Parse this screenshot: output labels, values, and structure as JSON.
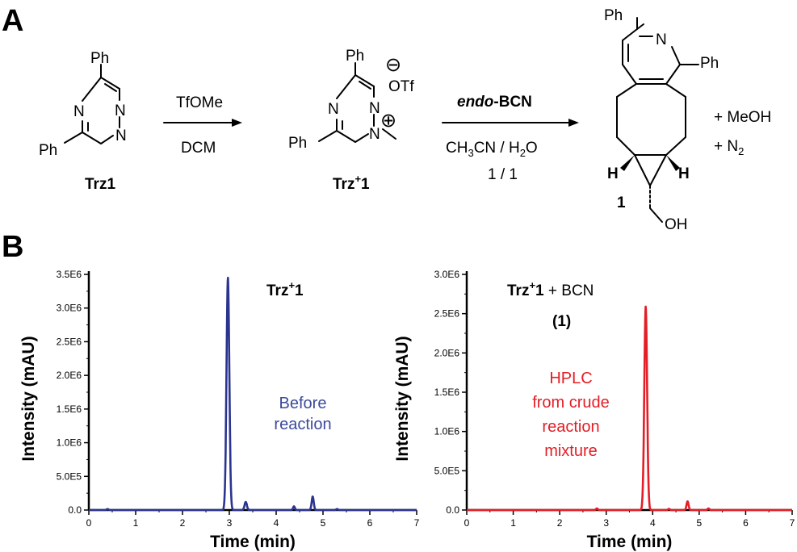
{
  "panel_labels": {
    "a": "A",
    "b": "B"
  },
  "scheme": {
    "trz1": {
      "name": "Trz1",
      "ph_top": "Ph",
      "ph_left": "Ph",
      "n1": "N",
      "n2": "N",
      "n3": "N"
    },
    "step1": {
      "reagent": "TfOMe",
      "solvent": "DCM"
    },
    "trz1_plus": {
      "name_main": "Trz",
      "name_sup": "+",
      "name_num": "1",
      "ph_top": "Ph",
      "ph_left": "Ph",
      "counterion": "OTf",
      "minus": "⊖",
      "plus": "⊕",
      "n1": "N",
      "n2": "N",
      "n3": "N"
    },
    "step2": {
      "reagent_italic": "endo",
      "reagent_rest": "-BCN",
      "solvent_a": "CH",
      "solvent_sub3": "3",
      "solvent_b": "CN / H",
      "solvent_sub2": "2",
      "solvent_c": "O",
      "ratio": "1 / 1"
    },
    "product": {
      "label": "1",
      "ph_top": "Ph",
      "ph_right": "Ph",
      "n": "N",
      "h_left": "H",
      "h_right": "H",
      "oh": "OH"
    },
    "byproducts": {
      "line1": "+ MeOH",
      "line2_a": "+ N",
      "line2_sub": "2"
    }
  },
  "colors": {
    "blue": "#2b3590",
    "red": "#e41e26",
    "annot_blue": "#3c4a9b"
  },
  "chart_data": [
    {
      "type": "line",
      "title_main": "Trz",
      "title_sup": "+",
      "title_num": "1",
      "annotation": [
        "Before",
        "reaction"
      ],
      "xlabel": "Time (min)",
      "ylabel": "Intensity (mAU)",
      "xlim": [
        0,
        7
      ],
      "ylim": [
        0,
        3500000
      ],
      "xticks": [
        "0",
        "1",
        "2",
        "3",
        "4",
        "5",
        "6",
        "7"
      ],
      "yticks": [
        {
          "v": 0,
          "t": "0.0"
        },
        {
          "v": 500000,
          "t": "5.0E5"
        },
        {
          "v": 1000000,
          "t": "1.0E6"
        },
        {
          "v": 1500000,
          "t": "1.5E6"
        },
        {
          "v": 2000000,
          "t": "2.0E6"
        },
        {
          "v": 2500000,
          "t": "2.5E6"
        },
        {
          "v": 3000000,
          "t": "3.0E6"
        },
        {
          "v": 3500000,
          "t": "3.5E6"
        }
      ],
      "color": "#2b3590",
      "series": [
        {
          "peaks": [
            {
              "x": 0.4,
              "y": 15000,
              "w": 0.02
            },
            {
              "x": 2.97,
              "y": 3450000,
              "w": 0.03
            },
            {
              "x": 3.35,
              "y": 120000,
              "w": 0.025
            },
            {
              "x": 4.38,
              "y": 55000,
              "w": 0.02
            },
            {
              "x": 4.78,
              "y": 200000,
              "w": 0.022
            },
            {
              "x": 5.3,
              "y": 15000,
              "w": 0.02
            }
          ]
        }
      ]
    },
    {
      "type": "line",
      "title_main": "Trz",
      "title_sup": "+",
      "title_num": "1",
      "title_rest": " +  BCN",
      "subtitle": "(1)",
      "annotation": [
        "HPLC",
        "from crude",
        "reaction",
        "mixture"
      ],
      "xlabel": "Time (min)",
      "ylabel": "Intensity (mAU)",
      "xlim": [
        0,
        7
      ],
      "ylim": [
        0,
        3000000
      ],
      "xticks": [
        "0",
        "1",
        "2",
        "3",
        "4",
        "5",
        "6",
        "7"
      ],
      "yticks": [
        {
          "v": 0,
          "t": "0.0"
        },
        {
          "v": 500000,
          "t": "5.0E5"
        },
        {
          "v": 1000000,
          "t": "1.0E6"
        },
        {
          "v": 1500000,
          "t": "1.5E6"
        },
        {
          "v": 2000000,
          "t": "2.0E6"
        },
        {
          "v": 2500000,
          "t": "2.5E6"
        },
        {
          "v": 3000000,
          "t": "3.0E6"
        }
      ],
      "color": "#e41e26",
      "series": [
        {
          "peaks": [
            {
              "x": 2.8,
              "y": 20000,
              "w": 0.02
            },
            {
              "x": 3.85,
              "y": 2590000,
              "w": 0.03
            },
            {
              "x": 4.35,
              "y": 15000,
              "w": 0.02
            },
            {
              "x": 4.75,
              "y": 110000,
              "w": 0.022
            },
            {
              "x": 5.2,
              "y": 20000,
              "w": 0.02
            }
          ]
        }
      ]
    }
  ]
}
